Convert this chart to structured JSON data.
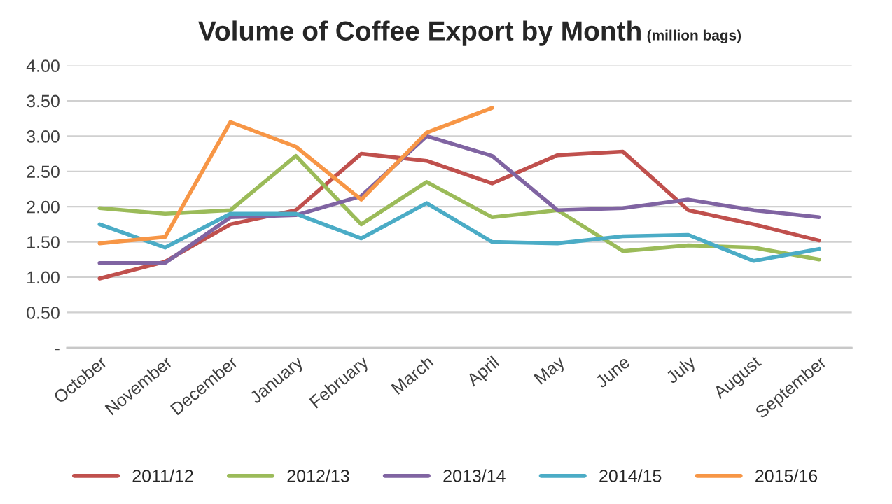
{
  "chart_data": {
    "type": "line",
    "title": "Volume of Coffee Export by Month",
    "subtitle": "(million bags)",
    "categories": [
      "October",
      "November",
      "December",
      "January",
      "February",
      "March",
      "April",
      "May",
      "June",
      "July",
      "August",
      "September"
    ],
    "series": [
      {
        "name": "2011/12",
        "color": "#c0504d",
        "values": [
          0.98,
          1.22,
          1.75,
          1.95,
          2.75,
          2.65,
          2.33,
          2.73,
          2.78,
          1.95,
          1.75,
          1.52
        ]
      },
      {
        "name": "2012/13",
        "color": "#9bbb59",
        "values": [
          1.98,
          1.9,
          1.95,
          2.72,
          1.75,
          2.35,
          1.85,
          1.95,
          1.37,
          1.45,
          1.42,
          1.25
        ]
      },
      {
        "name": "2013/14",
        "color": "#8064a2",
        "values": [
          1.2,
          1.2,
          1.85,
          1.88,
          2.15,
          3.0,
          2.72,
          1.95,
          1.98,
          2.1,
          1.95,
          1.85
        ]
      },
      {
        "name": "2014/15",
        "color": "#4bacc6",
        "values": [
          1.75,
          1.42,
          1.9,
          1.9,
          1.55,
          2.05,
          1.5,
          1.48,
          1.58,
          1.6,
          1.23,
          1.4
        ]
      },
      {
        "name": "2015/16",
        "color": "#f79646",
        "values": [
          1.48,
          1.57,
          3.2,
          2.85,
          2.1,
          3.05,
          3.4,
          null,
          null,
          null,
          null,
          null
        ]
      }
    ],
    "ylim": [
      0,
      4
    ],
    "yticks": [
      {
        "value": 0,
        "label": "-"
      },
      {
        "value": 0.5,
        "label": "0.50"
      },
      {
        "value": 1,
        "label": "1.00"
      },
      {
        "value": 1.5,
        "label": "1.50"
      },
      {
        "value": 2,
        "label": "2.00"
      },
      {
        "value": 2.5,
        "label": "2.50"
      },
      {
        "value": 3,
        "label": "3.00"
      },
      {
        "value": 3.5,
        "label": "3.50"
      },
      {
        "value": 4,
        "label": "4.00"
      }
    ],
    "grid": "y",
    "legend": "bottom"
  }
}
